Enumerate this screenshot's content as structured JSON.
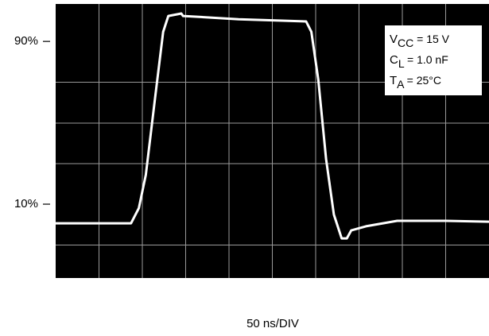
{
  "chart_data": {
    "type": "line",
    "x_label": "50 ns/DIV",
    "xlim": [
      0,
      500
    ],
    "ylim": [
      -26.3,
      108.4
    ],
    "yticks": [
      {
        "value": 90,
        "label": "90%"
      },
      {
        "value": 10,
        "label": "10%"
      }
    ],
    "background": "#000000",
    "series": [
      {
        "color": "#ffffff",
        "x": [
          0,
          87,
          96,
          104,
          115,
          124,
          130,
          145,
          147,
          211,
          289,
          295,
          303,
          312,
          321,
          330,
          336,
          341,
          358,
          394,
          450,
          500
        ],
        "values": [
          0.6,
          0.6,
          8,
          24.4,
          63.4,
          94.7,
          102.5,
          103.7,
          102.5,
          100.9,
          99.8,
          94.7,
          71.2,
          32.2,
          4.9,
          -6.8,
          -6.8,
          -2.9,
          -0.9,
          1.8,
          1.8,
          1.4
        ]
      }
    ],
    "annotations": [
      {
        "main": "V",
        "sub": "CC",
        "rest": " = 15 V"
      },
      {
        "main": "C",
        "sub": "L",
        "rest": " = 1.0 nF"
      },
      {
        "main": "T",
        "sub": "A",
        "rest": " = 25°C"
      }
    ]
  }
}
